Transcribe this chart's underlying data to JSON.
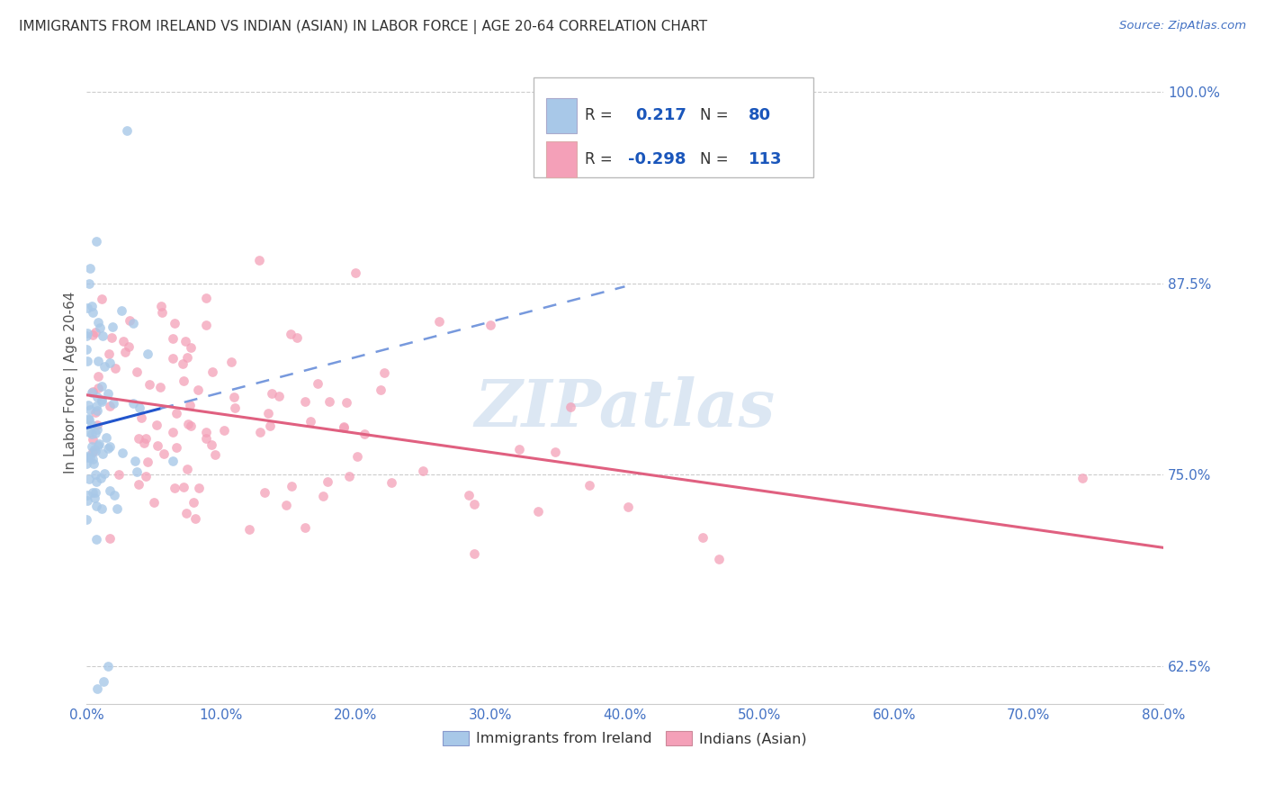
{
  "title": "IMMIGRANTS FROM IRELAND VS INDIAN (ASIAN) IN LABOR FORCE | AGE 20-64 CORRELATION CHART",
  "source_text": "Source: ZipAtlas.com",
  "ylabel": "In Labor Force | Age 20-64",
  "legend_ireland_r": "0.217",
  "legend_ireland_n": "80",
  "legend_indian_r": "-0.298",
  "legend_indian_n": "113",
  "legend_label_ireland": "Immigrants from Ireland",
  "legend_label_indian": "Indians (Asian)",
  "ireland_color": "#a8c8e8",
  "indian_color": "#f4a0b8",
  "ireland_line_color": "#2255cc",
  "indian_line_color": "#e06080",
  "watermark_text": "ZIPatlas",
  "xmin": 0.0,
  "xmax": 80.0,
  "ymin": 0.6,
  "ymax": 1.02,
  "yticks": [
    0.625,
    0.75,
    0.875,
    1.0
  ],
  "xticks": [
    0,
    10,
    20,
    30,
    40,
    50,
    60,
    70,
    80
  ],
  "ireland_seed": 12,
  "indian_seed": 7
}
